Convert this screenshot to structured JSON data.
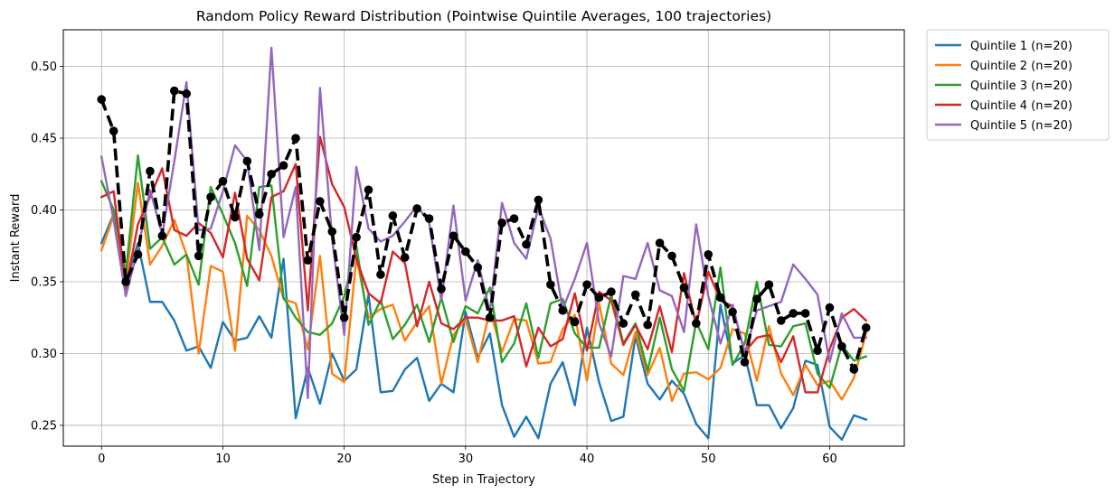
{
  "chart_data": {
    "type": "line",
    "title": "Random Policy Reward Distribution (Pointwise Quintile Averages, 100 trajectories)",
    "xlabel": "Step in Trajectory",
    "ylabel": "Instant Reward",
    "xlim": [
      -3.15,
      66.15
    ],
    "ylim": [
      0.2355,
      0.5255
    ],
    "xticks": [
      0,
      10,
      20,
      30,
      40,
      50,
      60
    ],
    "yticks": [
      0.25,
      0.3,
      0.35,
      0.4,
      0.45,
      0.5
    ],
    "ytick_labels": [
      "0.25",
      "0.30",
      "0.35",
      "0.40",
      "0.45",
      "0.50"
    ],
    "grid": true,
    "legend_position": "outside-top-right",
    "x": [
      0,
      1,
      2,
      3,
      4,
      5,
      6,
      7,
      8,
      9,
      10,
      11,
      12,
      13,
      14,
      15,
      16,
      17,
      18,
      19,
      20,
      21,
      22,
      23,
      24,
      25,
      26,
      27,
      28,
      29,
      30,
      31,
      32,
      33,
      34,
      35,
      36,
      37,
      38,
      39,
      40,
      41,
      42,
      43,
      44,
      45,
      46,
      47,
      48,
      49,
      50,
      51,
      52,
      53,
      54,
      55,
      56,
      57,
      58,
      59,
      60,
      61,
      62,
      63
    ],
    "series": [
      {
        "name": "Quintile 1 (n=20)",
        "color": "#1f77b4",
        "width": 2.4,
        "values": [
          0.377,
          0.397,
          0.349,
          0.377,
          0.336,
          0.336,
          0.323,
          0.302,
          0.305,
          0.29,
          0.322,
          0.309,
          0.311,
          0.326,
          0.311,
          0.366,
          0.255,
          0.29,
          0.265,
          0.3,
          0.281,
          0.289,
          0.341,
          0.273,
          0.274,
          0.289,
          0.297,
          0.267,
          0.279,
          0.273,
          0.329,
          0.297,
          0.314,
          0.264,
          0.242,
          0.256,
          0.241,
          0.279,
          0.294,
          0.264,
          0.318,
          0.28,
          0.253,
          0.256,
          0.312,
          0.279,
          0.268,
          0.281,
          0.272,
          0.251,
          0.241,
          0.334,
          0.293,
          0.299,
          0.264,
          0.264,
          0.248,
          0.262,
          0.295,
          0.292,
          0.249,
          0.24,
          0.257,
          0.254
        ]
      },
      {
        "name": "Quintile 2 (n=20)",
        "color": "#ff7f0e",
        "width": 2.4,
        "values": [
          0.372,
          0.396,
          0.349,
          0.419,
          0.362,
          0.375,
          0.393,
          0.369,
          0.3,
          0.361,
          0.357,
          0.302,
          0.396,
          0.386,
          0.368,
          0.338,
          0.335,
          0.303,
          0.368,
          0.286,
          0.28,
          0.367,
          0.325,
          0.331,
          0.334,
          0.309,
          0.322,
          0.333,
          0.279,
          0.313,
          0.324,
          0.294,
          0.33,
          0.301,
          0.324,
          0.323,
          0.293,
          0.294,
          0.317,
          0.327,
          0.281,
          0.335,
          0.293,
          0.285,
          0.315,
          0.285,
          0.304,
          0.267,
          0.286,
          0.287,
          0.282,
          0.29,
          0.317,
          0.314,
          0.281,
          0.319,
          0.286,
          0.271,
          0.292,
          0.278,
          0.281,
          0.268,
          0.283,
          0.314
        ]
      },
      {
        "name": "Quintile 3 (n=20)",
        "color": "#2ca02c",
        "width": 2.4,
        "values": [
          0.42,
          0.4,
          0.356,
          0.438,
          0.373,
          0.381,
          0.362,
          0.369,
          0.348,
          0.416,
          0.397,
          0.377,
          0.347,
          0.416,
          0.417,
          0.339,
          0.325,
          0.315,
          0.313,
          0.321,
          0.34,
          0.375,
          0.32,
          0.337,
          0.31,
          0.32,
          0.334,
          0.308,
          0.339,
          0.308,
          0.333,
          0.328,
          0.346,
          0.294,
          0.307,
          0.335,
          0.297,
          0.335,
          0.338,
          0.314,
          0.304,
          0.304,
          0.341,
          0.307,
          0.321,
          0.288,
          0.325,
          0.289,
          0.274,
          0.322,
          0.303,
          0.36,
          0.292,
          0.307,
          0.35,
          0.306,
          0.305,
          0.319,
          0.321,
          0.286,
          0.276,
          0.306,
          0.295,
          0.298
        ]
      },
      {
        "name": "Quintile 4 (n=20)",
        "color": "#d62728",
        "width": 2.4,
        "values": [
          0.409,
          0.413,
          0.345,
          0.39,
          0.409,
          0.429,
          0.386,
          0.382,
          0.391,
          0.384,
          0.367,
          0.412,
          0.366,
          0.351,
          0.409,
          0.413,
          0.432,
          0.33,
          0.451,
          0.418,
          0.402,
          0.366,
          0.342,
          0.335,
          0.371,
          0.363,
          0.319,
          0.35,
          0.321,
          0.317,
          0.325,
          0.325,
          0.323,
          0.323,
          0.326,
          0.291,
          0.318,
          0.305,
          0.31,
          0.342,
          0.302,
          0.343,
          0.337,
          0.306,
          0.32,
          0.303,
          0.333,
          0.301,
          0.356,
          0.32,
          0.357,
          0.337,
          0.333,
          0.301,
          0.311,
          0.313,
          0.294,
          0.312,
          0.273,
          0.273,
          0.303,
          0.325,
          0.331,
          0.323
        ]
      },
      {
        "name": "Quintile 5 (n=20)",
        "color": "#9467bd",
        "width": 2.4,
        "values": [
          0.437,
          0.393,
          0.34,
          0.373,
          0.414,
          0.383,
          0.434,
          0.489,
          0.386,
          0.387,
          0.413,
          0.445,
          0.434,
          0.372,
          0.513,
          0.381,
          0.416,
          0.269,
          0.485,
          0.38,
          0.313,
          0.43,
          0.387,
          0.378,
          0.382,
          0.392,
          0.403,
          0.391,
          0.337,
          0.403,
          0.337,
          0.365,
          0.329,
          0.405,
          0.377,
          0.366,
          0.402,
          0.38,
          0.331,
          0.352,
          0.377,
          0.321,
          0.298,
          0.354,
          0.352,
          0.377,
          0.344,
          0.34,
          0.315,
          0.39,
          0.34,
          0.307,
          0.334,
          0.3,
          0.33,
          0.333,
          0.336,
          0.362,
          0.352,
          0.341,
          0.294,
          0.328,
          0.311,
          0.311
        ]
      },
      {
        "color": "#000000",
        "width": 3.6,
        "dashed": true,
        "markers": true,
        "values": [
          0.477,
          0.455,
          0.35,
          0.369,
          0.427,
          0.382,
          0.483,
          0.481,
          0.368,
          0.409,
          0.42,
          0.395,
          0.434,
          0.397,
          0.425,
          0.431,
          0.45,
          0.365,
          0.406,
          0.385,
          0.325,
          0.381,
          0.414,
          0.355,
          0.396,
          0.367,
          0.401,
          0.394,
          0.345,
          0.382,
          0.371,
          0.36,
          0.325,
          0.391,
          0.394,
          0.376,
          0.407,
          0.348,
          0.33,
          0.322,
          0.348,
          0.339,
          0.343,
          0.321,
          0.341,
          0.32,
          0.377,
          0.368,
          0.346,
          0.321,
          0.369,
          0.339,
          0.329,
          0.294,
          0.338,
          0.348,
          0.323,
          0.328,
          0.328,
          0.302,
          0.332,
          0.305,
          0.289,
          0.318
        ]
      }
    ]
  }
}
